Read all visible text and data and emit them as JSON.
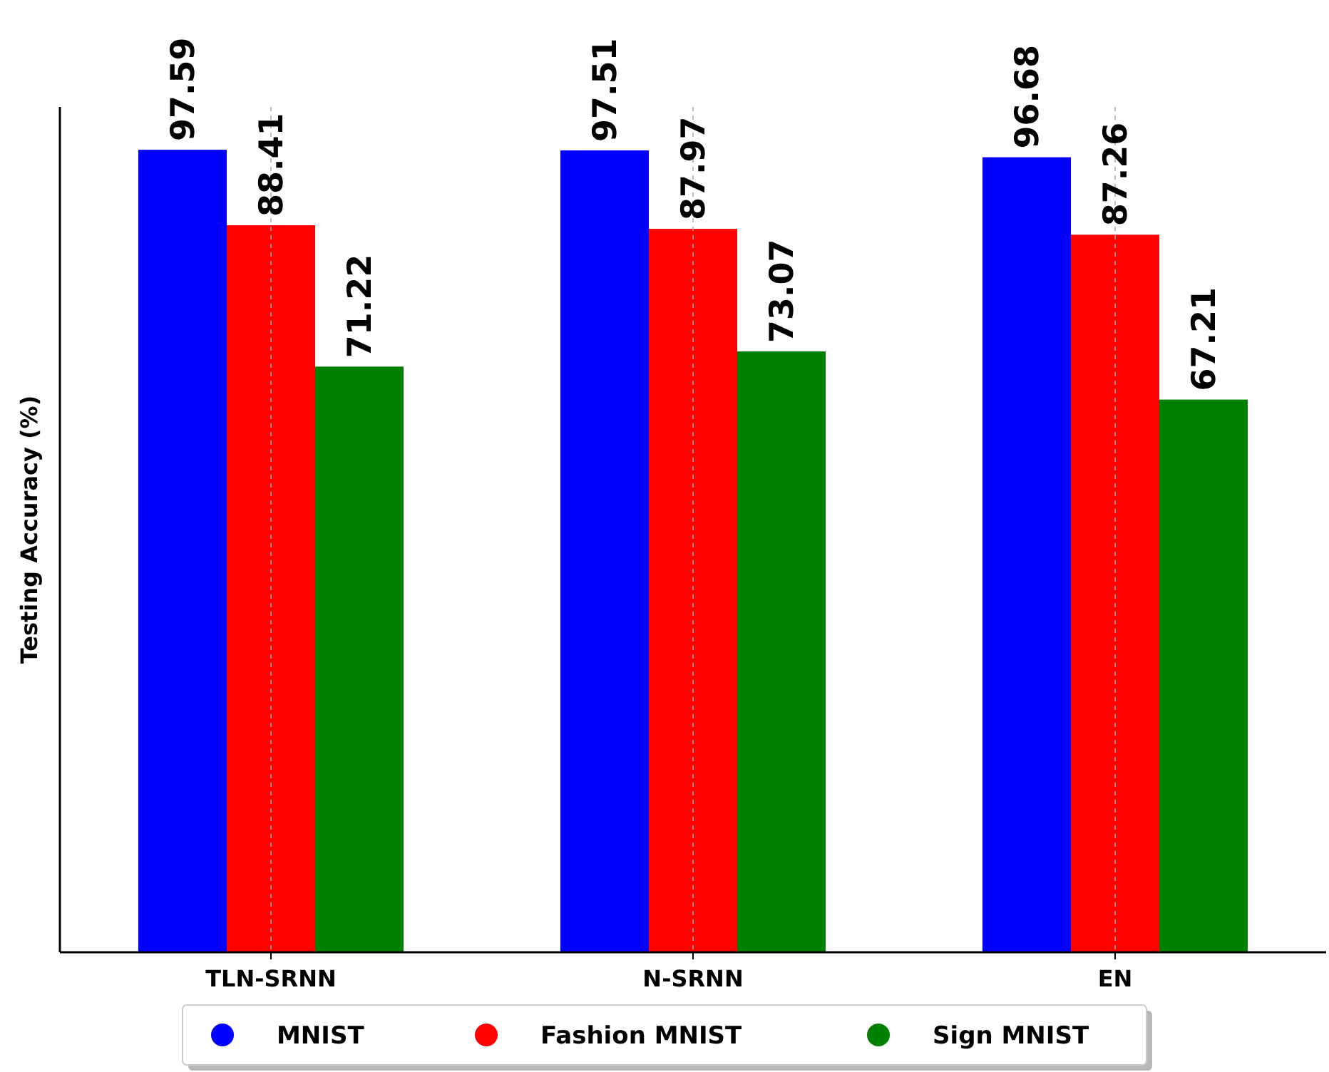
{
  "chart_data": {
    "type": "bar",
    "ylabel": "Testing Accuracy (%)",
    "categories": [
      "TLN-SRNN",
      "N-SRNN",
      "EN"
    ],
    "series": [
      {
        "name": "MNIST",
        "color": "#0000ff",
        "values": [
          97.59,
          97.51,
          96.68
        ]
      },
      {
        "name": "Fashion MNIST",
        "color": "#ff0000",
        "values": [
          88.41,
          87.97,
          87.26
        ]
      },
      {
        "name": "Sign MNIST",
        "color": "#008000",
        "values": [
          71.22,
          73.07,
          67.21
        ]
      }
    ],
    "ylim": [
      0,
      102.8
    ],
    "tick_labels": "x",
    "data_labels": true,
    "grid": "x",
    "legend": "bottom",
    "marker": "circle"
  }
}
